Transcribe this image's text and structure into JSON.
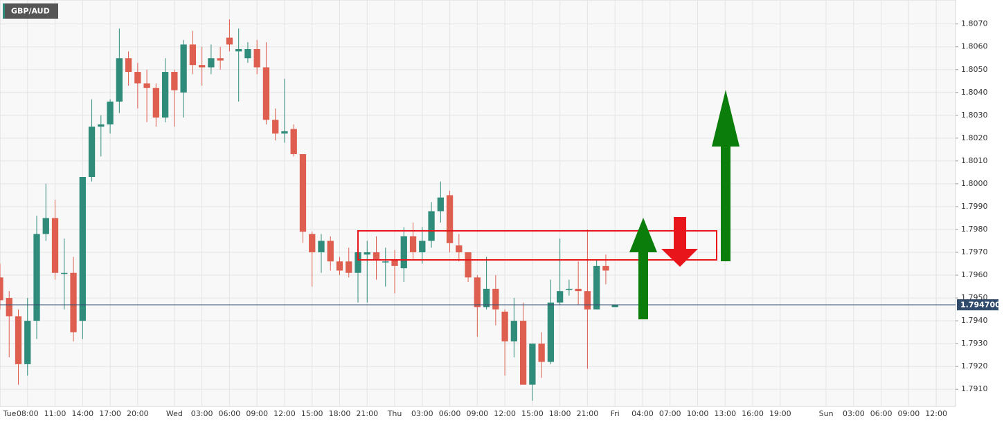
{
  "chart_data": {
    "type": "candlestick",
    "title": "GBP/AUD",
    "up_color": "#2f8b7a",
    "down_color": "#de5e4f",
    "x": [
      5,
      6,
      7,
      8,
      9,
      10,
      11,
      12,
      13,
      14,
      15,
      16,
      17,
      18,
      19,
      20,
      21,
      22,
      23,
      24,
      25,
      26,
      27,
      28,
      29,
      30,
      31,
      32,
      33,
      34,
      35,
      36,
      37,
      38,
      39,
      40,
      41,
      42,
      43,
      44,
      45,
      46,
      47,
      48,
      49,
      50,
      51,
      52,
      53,
      54,
      55,
      56,
      57,
      58,
      59,
      60,
      61,
      62,
      63,
      64,
      65,
      66,
      67,
      68,
      69,
      70,
      71,
      72
    ],
    "open": [
      1.7959,
      1.795,
      1.7942,
      1.7921,
      1.794,
      1.7978,
      1.7985,
      1.7961,
      1.7961,
      1.794,
      1.8003,
      1.8025,
      1.8026,
      1.8036,
      1.8055,
      1.8049,
      1.8044,
      1.8042,
      1.8029,
      1.8049,
      1.804,
      1.8061,
      1.8052,
      1.8051,
      1.8055,
      1.8064,
      1.8058,
      1.8055,
      1.8059,
      1.8051,
      1.8028,
      1.8022,
      1.8024,
      1.8013,
      1.7978,
      1.797,
      1.7975,
      1.7966,
      1.7966,
      1.7961,
      1.7969,
      1.797,
      1.7966,
      1.7967,
      1.7963,
      1.7977,
      1.797,
      1.7975,
      1.7988,
      1.7995,
      1.7973,
      1.797,
      1.7959,
      1.7946,
      1.7954,
      1.7944,
      1.7931,
      1.794,
      1.7912,
      1.793,
      1.7922,
      1.7948,
      1.7954,
      1.7954,
      1.7953,
      1.7945,
      1.7964,
      1.7946
    ],
    "high": [
      1.7965,
      1.7953,
      1.7945,
      1.795,
      1.7986,
      1.8,
      1.7993,
      1.7976,
      1.7968,
      1.8003,
      1.8037,
      1.803,
      1.8037,
      1.8068,
      1.8058,
      1.8053,
      1.805,
      1.8044,
      1.8055,
      1.805,
      1.8063,
      1.8067,
      1.806,
      1.8061,
      1.806,
      1.8072,
      1.8068,
      1.8062,
      1.8063,
      1.8062,
      1.8033,
      1.8046,
      1.8026,
      1.8013,
      1.7979,
      1.7978,
      1.7977,
      1.7968,
      1.7972,
      1.7972,
      1.7975,
      1.7977,
      1.7972,
      1.7971,
      1.7981,
      1.7983,
      1.7981,
      1.7992,
      1.8001,
      1.7997,
      1.7978,
      1.797,
      1.796,
      1.7968,
      1.796,
      1.7945,
      1.795,
      1.7948,
      1.793,
      1.7935,
      1.7958,
      1.7976,
      1.7958,
      1.7966,
      1.798,
      1.7967,
      1.7969,
      1.7947
    ],
    "low": [
      1.7945,
      1.7924,
      1.7912,
      1.7916,
      1.7932,
      1.7975,
      1.7958,
      1.7945,
      1.7931,
      1.7932,
      1.8001,
      1.8012,
      1.8022,
      1.8031,
      1.8043,
      1.8033,
      1.8027,
      1.8025,
      1.8027,
      1.8025,
      1.8029,
      1.8048,
      1.8043,
      1.8048,
      1.805,
      1.8058,
      1.8036,
      1.8053,
      1.8048,
      1.8026,
      1.8019,
      1.8018,
      1.8012,
      1.7974,
      1.7955,
      1.7961,
      1.7962,
      1.796,
      1.7959,
      1.7948,
      1.7948,
      1.7958,
      1.7955,
      1.7952,
      1.7957,
      1.7967,
      1.7965,
      1.7972,
      1.7983,
      1.797,
      1.7966,
      1.7957,
      1.7933,
      1.7945,
      1.7938,
      1.7916,
      1.7924,
      1.7912,
      1.7905,
      1.7915,
      1.7921,
      1.7947,
      1.7951,
      1.7947,
      1.7919,
      1.7945,
      1.7956,
      1.7946
    ],
    "close": [
      1.7949,
      1.7942,
      1.7921,
      1.794,
      1.7978,
      1.7985,
      1.7961,
      1.7961,
      1.7935,
      1.8003,
      1.8025,
      1.8026,
      1.8036,
      1.8055,
      1.8049,
      1.8044,
      1.8042,
      1.8029,
      1.8049,
      1.8041,
      1.8061,
      1.8052,
      1.8051,
      1.8055,
      1.8054,
      1.8061,
      1.8059,
      1.8059,
      1.8051,
      1.8028,
      1.8022,
      1.8023,
      1.8013,
      1.7979,
      1.797,
      1.7975,
      1.7966,
      1.7962,
      1.7961,
      1.797,
      1.797,
      1.7967,
      1.7966,
      1.7964,
      1.7977,
      1.797,
      1.7975,
      1.7988,
      1.7994,
      1.7974,
      1.797,
      1.7959,
      1.7946,
      1.7954,
      1.7945,
      1.7931,
      1.794,
      1.7912,
      1.793,
      1.7922,
      1.7948,
      1.7953,
      1.7954,
      1.7953,
      1.7945,
      1.7964,
      1.7962,
      1.7947
    ],
    "current_price": {
      "value": 1.7947,
      "label": "1.794700"
    },
    "xlim": [
      5,
      109.1
    ],
    "ylim": [
      1.79025,
      1.80805
    ],
    "yticks": [
      {
        "value": 1.791,
        "label": "1.7910"
      },
      {
        "value": 1.792,
        "label": "1.7920"
      },
      {
        "value": 1.793,
        "label": "1.7930"
      },
      {
        "value": 1.794,
        "label": "1.7940"
      },
      {
        "value": 1.795,
        "label": "1.7950"
      },
      {
        "value": 1.796,
        "label": "1.7960"
      },
      {
        "value": 1.797,
        "label": "1.7970"
      },
      {
        "value": 1.798,
        "label": "1.7980"
      },
      {
        "value": 1.799,
        "label": "1.7990"
      },
      {
        "value": 1.8,
        "label": "1.8000"
      },
      {
        "value": 1.801,
        "label": "1.8010"
      },
      {
        "value": 1.802,
        "label": "1.8020"
      },
      {
        "value": 1.803,
        "label": "1.8030"
      },
      {
        "value": 1.804,
        "label": "1.8040"
      },
      {
        "value": 1.805,
        "label": "1.8050"
      },
      {
        "value": 1.806,
        "label": "1.8060"
      },
      {
        "value": 1.807,
        "label": "1.8070"
      }
    ],
    "xticks": [
      {
        "value": 0,
        "label": "Tue"
      },
      {
        "value": 8,
        "label": "08:00"
      },
      {
        "value": 11,
        "label": "11:00"
      },
      {
        "value": 14,
        "label": "14:00"
      },
      {
        "value": 17,
        "label": "17:00"
      },
      {
        "value": 20,
        "label": "20:00"
      },
      {
        "value": 24,
        "label": "Wed"
      },
      {
        "value": 27,
        "label": "03:00"
      },
      {
        "value": 30,
        "label": "06:00"
      },
      {
        "value": 33,
        "label": "09:00"
      },
      {
        "value": 36,
        "label": "12:00"
      },
      {
        "value": 39,
        "label": "15:00"
      },
      {
        "value": 42,
        "label": "18:00"
      },
      {
        "value": 45,
        "label": "21:00"
      },
      {
        "value": 48,
        "label": "Thu"
      },
      {
        "value": 51,
        "label": "03:00"
      },
      {
        "value": 54,
        "label": "06:00"
      },
      {
        "value": 57,
        "label": "09:00"
      },
      {
        "value": 60,
        "label": "12:00"
      },
      {
        "value": 63,
        "label": "15:00"
      },
      {
        "value": 66,
        "label": "18:00"
      },
      {
        "value": 69,
        "label": "21:00"
      },
      {
        "value": 72,
        "label": "Fri"
      },
      {
        "value": 75,
        "label": "04:00"
      },
      {
        "value": 78,
        "label": "07:00"
      },
      {
        "value": 81,
        "label": "10:00"
      },
      {
        "value": 84,
        "label": "13:00"
      },
      {
        "value": 87,
        "label": "16:00"
      },
      {
        "value": 90,
        "label": "19:00"
      },
      {
        "value": 95,
        "label": "Sun"
      },
      {
        "value": 98,
        "label": "03:00"
      },
      {
        "value": 101,
        "label": "06:00"
      },
      {
        "value": 104,
        "label": "09:00"
      },
      {
        "value": 107,
        "label": "12:00"
      }
    ],
    "grid": true
  }
}
